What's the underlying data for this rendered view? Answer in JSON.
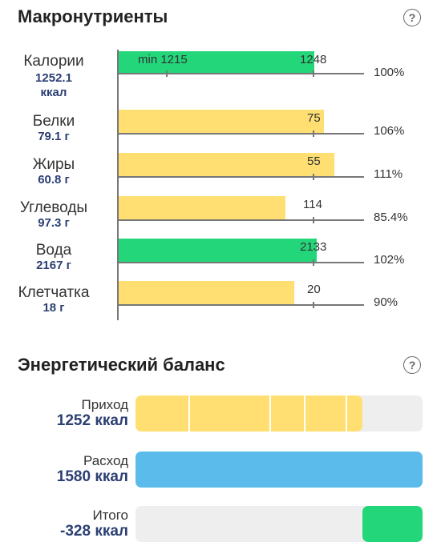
{
  "macronutrients": {
    "title": "Макронутриенты",
    "help": "?",
    "colors": {
      "ok": "#24d67a",
      "low": "#ffdf72",
      "axis": "#777777"
    },
    "rows": [
      {
        "name": "Калории",
        "value": "1252.1",
        "unit": "ккал",
        "norm_label": "1248",
        "norm": 1248,
        "min_label": "min 1215",
        "min": 1215,
        "percent": "100%",
        "fraction": 1.003,
        "status": "ok"
      },
      {
        "name": "Белки",
        "value": "79.1 г",
        "norm_label": "75",
        "norm": 75,
        "percent": "106%",
        "fraction": 1.055,
        "status": "low"
      },
      {
        "name": "Жиры",
        "value": "60.8 г",
        "norm_label": "55",
        "norm": 55,
        "percent": "111%",
        "fraction": 1.105,
        "status": "low"
      },
      {
        "name": "Углеводы",
        "value": "97.3 г",
        "norm_label": "114",
        "norm": 114,
        "percent": "85.4%",
        "fraction": 0.854,
        "status": "low"
      },
      {
        "name": "Вода",
        "value": "2167 г",
        "norm_label": "2133",
        "norm": 2133,
        "percent": "102%",
        "fraction": 1.016,
        "status": "ok"
      },
      {
        "name": "Клетчатка",
        "value": "18 г",
        "norm_label": "20",
        "norm": 20,
        "percent": "90%",
        "fraction": 0.9,
        "status": "low"
      }
    ]
  },
  "energy_balance": {
    "title": "Энергетический баланс",
    "help": "?",
    "colors": {
      "income": "#ffdf72",
      "expense": "#5bbcec",
      "total": "#24d67a",
      "track": "#eeeeee"
    },
    "rows": [
      {
        "label": "Приход",
        "value": "1252 ккал",
        "amount": 1252,
        "fraction": 0.79
      },
      {
        "label": "Расход",
        "value": "1580 ккал",
        "amount": 1580,
        "fraction": 1.0
      },
      {
        "label": "Итого",
        "value": "-328 ккал",
        "amount": -328,
        "fraction": 0.21
      }
    ]
  }
}
